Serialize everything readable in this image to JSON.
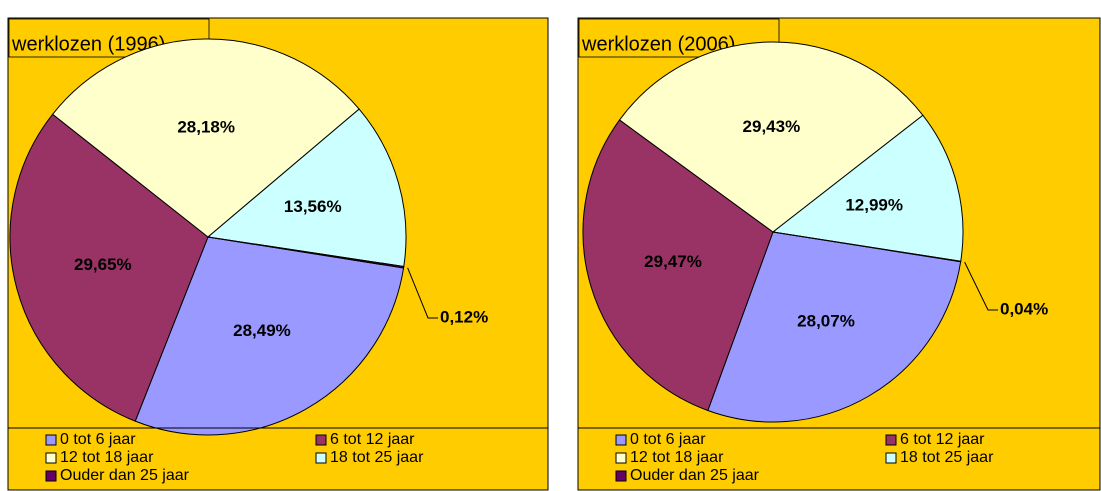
{
  "chart_data": [
    {
      "type": "pie",
      "title": "werklozen (1996)",
      "categories": [
        "0 tot 6 jaar",
        "6 tot 12 jaar",
        "12 tot 18 jaar",
        "18 tot 25 jaar",
        "Ouder dan 25 jaar"
      ],
      "values": [
        28.49,
        29.65,
        28.18,
        13.56,
        0.12
      ],
      "value_labels": [
        "28,49%",
        "29,65%",
        "28,18%",
        "13,56%",
        "0,12%"
      ],
      "colors": [
        "#9999ff",
        "#993366",
        "#ffffcc",
        "#ccffff",
        "#660066"
      ],
      "legend": "bottom"
    },
    {
      "type": "pie",
      "title": "werklozen (2006)",
      "categories": [
        "0 tot 6 jaar",
        "6 tot 12 jaar",
        "12 tot 18 jaar",
        "18 tot 25 jaar",
        "Ouder dan 25 jaar"
      ],
      "values": [
        28.07,
        29.47,
        29.43,
        12.99,
        0.04
      ],
      "value_labels": [
        "28,07%",
        "29,47%",
        "29,43%",
        "12,99%",
        "0,04%"
      ],
      "colors": [
        "#9999ff",
        "#993366",
        "#ffffcc",
        "#ccffff",
        "#660066"
      ],
      "legend": "bottom"
    }
  ]
}
